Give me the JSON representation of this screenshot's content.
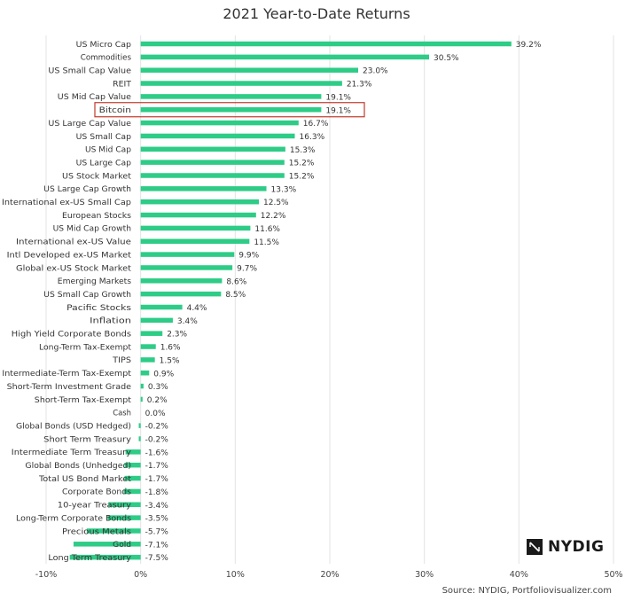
{
  "chart_data": {
    "type": "bar",
    "orientation": "horizontal",
    "title": "2021 Year-to-Date Returns",
    "xlabel": "",
    "ylabel": "",
    "xlim": [
      -10,
      50
    ],
    "xticks": [
      -10,
      0,
      10,
      20,
      30,
      40,
      50
    ],
    "xtick_labels": [
      "-10%",
      "0%",
      "10%",
      "20%",
      "30%",
      "40%",
      "50%"
    ],
    "grid": true,
    "bar_color": "#2ecc87",
    "highlight_color": "#c0392b",
    "highlight_category": "Bitcoin",
    "categories": [
      "US Micro Cap",
      "Commodities",
      "US Small Cap Value",
      "REIT",
      "US Mid Cap Value",
      "Bitcoin",
      "US Large Cap Value",
      "US Small Cap",
      "US Mid Cap",
      "US Large Cap",
      "US Stock Market",
      "US Large Cap Growth",
      "International ex-US Small Cap",
      "European Stocks",
      "US Mid Cap Growth",
      "International ex-US Value",
      "Intl Developed ex-US Market",
      "Global ex-US Stock Market",
      "Emerging Markets",
      "US Small Cap Growth",
      "Pacific Stocks",
      "Inflation",
      "High Yield Corporate Bonds",
      "Long-Term Tax-Exempt",
      "TIPS",
      "Intermediate-Term Tax-Exempt",
      "Short-Term Investment Grade",
      "Short-Term Tax-Exempt",
      "Cash",
      "Global Bonds (USD Hedged)",
      "Short Term Treasury",
      "Intermediate Term Treasury",
      "Global Bonds (Unhedged)",
      "Total US Bond Market",
      "Corporate Bonds",
      "10-year Treasury",
      "Long-Term Corporate Bonds",
      "Precious Metals",
      "Gold",
      "Long Term Treasury"
    ],
    "values": [
      39.2,
      30.5,
      23.0,
      21.3,
      19.1,
      19.1,
      16.7,
      16.3,
      15.3,
      15.2,
      15.2,
      13.3,
      12.5,
      12.2,
      11.6,
      11.5,
      9.9,
      9.7,
      8.6,
      8.5,
      4.4,
      3.4,
      2.3,
      1.6,
      1.5,
      0.9,
      0.3,
      0.2,
      0.0,
      -0.2,
      -0.2,
      -1.6,
      -1.7,
      -1.7,
      -1.8,
      -3.4,
      -3.5,
      -5.7,
      -7.1,
      -7.5
    ],
    "value_labels": [
      "39.2%",
      "30.5%",
      "23.0%",
      "21.3%",
      "19.1%",
      "19.1%",
      "16.7%",
      "16.3%",
      "15.3%",
      "15.2%",
      "15.2%",
      "13.3%",
      "12.5%",
      "12.2%",
      "11.6%",
      "11.5%",
      "9.9%",
      "9.7%",
      "8.6%",
      "8.5%",
      "4.4%",
      "3.4%",
      "2.3%",
      "1.6%",
      "1.5%",
      "0.9%",
      "0.3%",
      "0.2%",
      "0.0%",
      "-0.2%",
      "-0.2%",
      "-1.6%",
      "-1.7%",
      "-1.7%",
      "-1.8%",
      "-3.4%",
      "-3.5%",
      "-5.7%",
      "-7.1%",
      "-7.5%"
    ]
  },
  "source": "Source: NYDIG, Portfoliovisualizer.com",
  "logo_text": "NYDIG"
}
